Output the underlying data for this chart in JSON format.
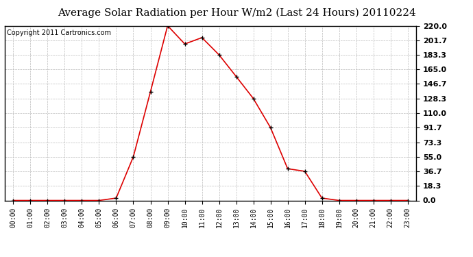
{
  "title": "Average Solar Radiation per Hour W/m2 (Last 24 Hours) 20110224",
  "copyright": "Copyright 2011 Cartronics.com",
  "hours": [
    "00:00",
    "01:00",
    "02:00",
    "03:00",
    "04:00",
    "05:00",
    "06:00",
    "07:00",
    "08:00",
    "09:00",
    "10:00",
    "11:00",
    "12:00",
    "13:00",
    "14:00",
    "15:00",
    "16:00",
    "17:00",
    "18:00",
    "19:00",
    "20:00",
    "21:00",
    "22:00",
    "23:00"
  ],
  "values": [
    0.0,
    0.0,
    0.0,
    0.0,
    0.0,
    0.0,
    3.0,
    55.0,
    137.0,
    220.0,
    197.0,
    205.0,
    183.3,
    156.0,
    128.3,
    91.7,
    40.0,
    36.7,
    3.0,
    0.0,
    0.0,
    0.0,
    0.0,
    0.0
  ],
  "line_color": "#dd0000",
  "marker": "+",
  "marker_color": "#000000",
  "background_color": "#ffffff",
  "plot_bg_color": "#ffffff",
  "grid_color": "#bbbbbb",
  "ylim": [
    0.0,
    220.0
  ],
  "yticks": [
    0.0,
    18.3,
    36.7,
    55.0,
    73.3,
    91.7,
    110.0,
    128.3,
    146.7,
    165.0,
    183.3,
    201.7,
    220.0
  ],
  "ytick_labels": [
    "0.0",
    "18.3",
    "36.7",
    "55.0",
    "73.3",
    "91.7",
    "110.0",
    "128.3",
    "146.7",
    "165.0",
    "183.3",
    "201.7",
    "220.0"
  ],
  "title_fontsize": 11,
  "copyright_fontsize": 7,
  "tick_fontsize": 7,
  "ytick_fontsize": 8
}
